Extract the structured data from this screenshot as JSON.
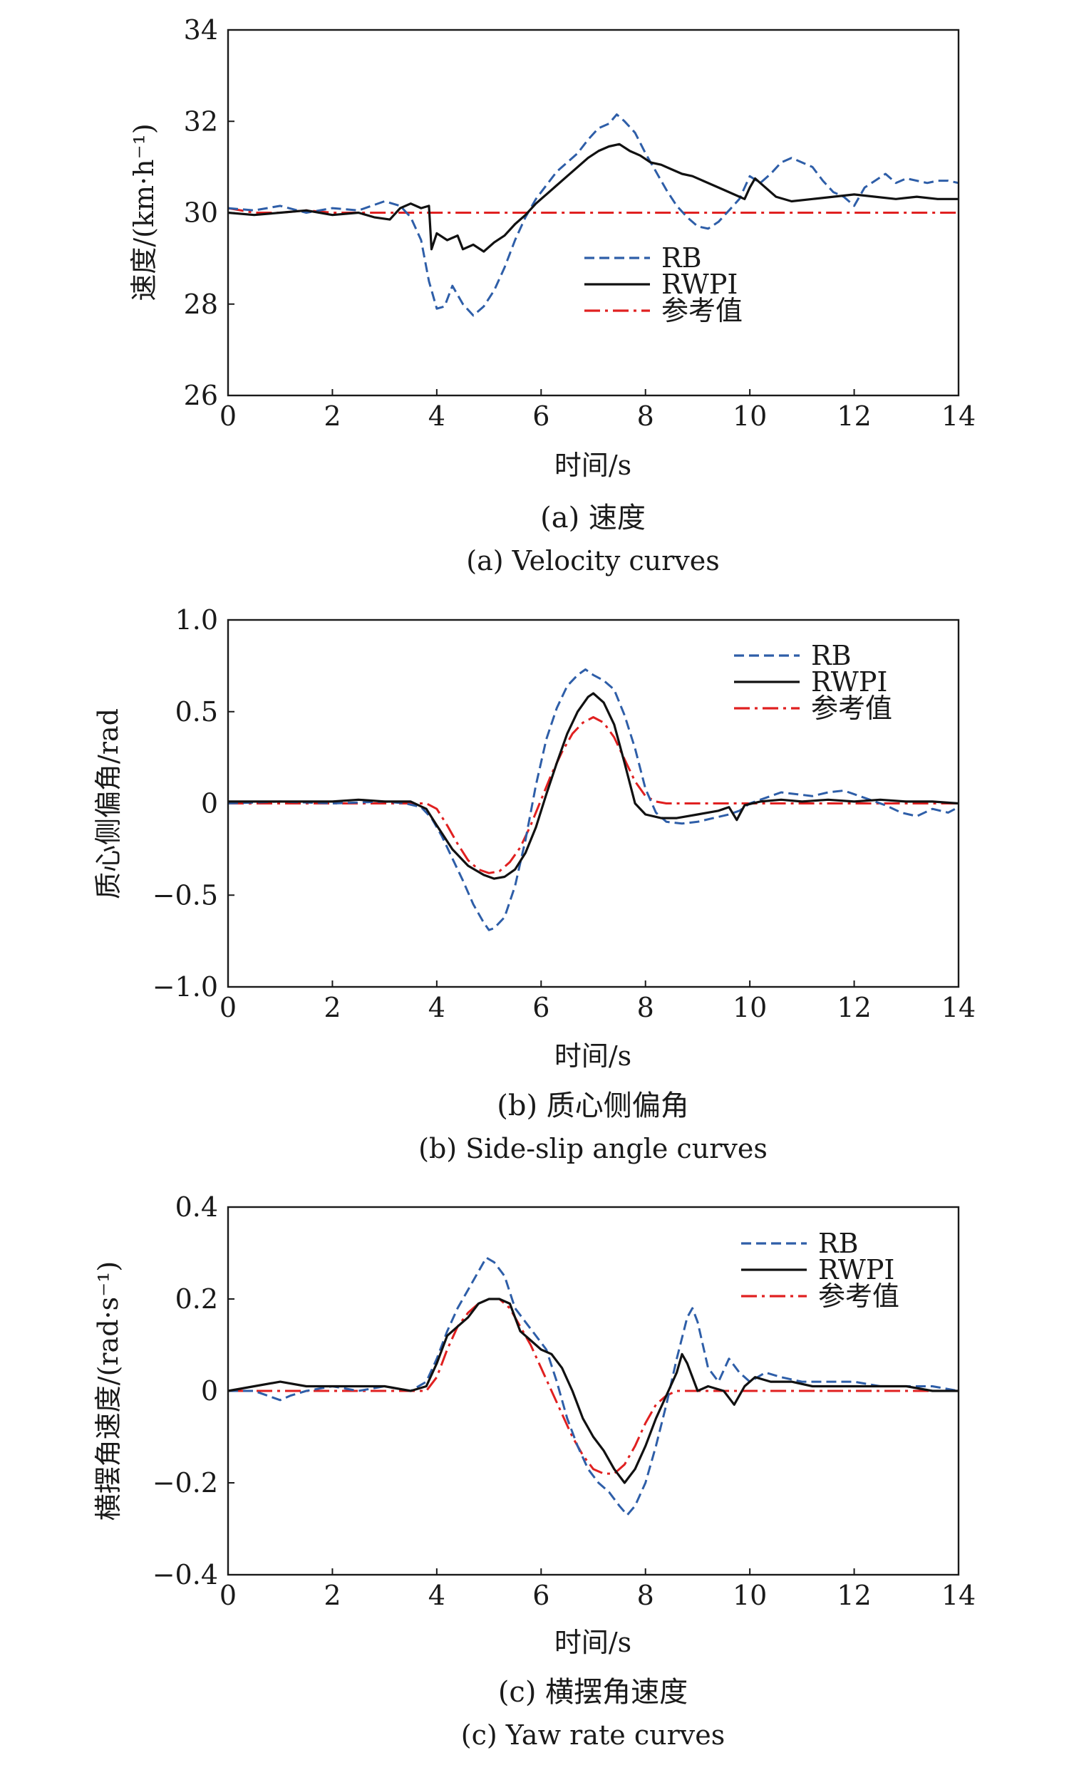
{
  "chart_data": [
    {
      "type": "line",
      "ylabel": "速度/(km·h⁻¹)",
      "xlabel": "时间/s",
      "caption_cn": "(a) 速度",
      "caption_en": "(a) Velocity curves",
      "xlim": [
        0,
        14
      ],
      "ylim": [
        26,
        34
      ],
      "xticks": [
        0,
        2,
        4,
        6,
        8,
        10,
        12,
        14
      ],
      "yticks": [
        26,
        28,
        30,
        32,
        34
      ],
      "xtick_labels": [
        "0",
        "2",
        "4",
        "6",
        "8",
        "10",
        "12",
        "14"
      ],
      "ytick_labels": [
        "26",
        "28",
        "30",
        "32",
        "34"
      ],
      "legend_position": "center",
      "series": [
        {
          "name": "RB",
          "color": "#2e5ea8",
          "dash": "dashed",
          "x": [
            0,
            0.5,
            1,
            1.5,
            2,
            2.5,
            3,
            3.3,
            3.5,
            3.7,
            3.85,
            4,
            4.15,
            4.3,
            4.5,
            4.7,
            4.9,
            5.1,
            5.3,
            5.5,
            5.7,
            5.9,
            6.1,
            6.3,
            6.5,
            6.7,
            6.9,
            7.1,
            7.3,
            7.45,
            7.6,
            7.8,
            8,
            8.2,
            8.4,
            8.6,
            8.8,
            9,
            9.2,
            9.4,
            9.6,
            9.8,
            10,
            10.2,
            10.4,
            10.6,
            10.8,
            11,
            11.2,
            11.4,
            11.6,
            11.8,
            12,
            12.2,
            12.4,
            12.6,
            12.8,
            13,
            13.2,
            13.4,
            13.6,
            13.8,
            14
          ],
          "y": [
            30.1,
            30.05,
            30.15,
            30.0,
            30.1,
            30.05,
            30.25,
            30.15,
            29.9,
            29.4,
            28.5,
            27.9,
            27.95,
            28.4,
            28.0,
            27.75,
            27.95,
            28.3,
            28.8,
            29.4,
            29.9,
            30.3,
            30.6,
            30.9,
            31.1,
            31.3,
            31.6,
            31.85,
            31.95,
            32.15,
            32.0,
            31.75,
            31.3,
            30.9,
            30.5,
            30.15,
            29.9,
            29.7,
            29.65,
            29.8,
            30.05,
            30.3,
            30.8,
            30.65,
            30.85,
            31.1,
            31.2,
            31.1,
            31.0,
            30.7,
            30.45,
            30.35,
            30.15,
            30.55,
            30.7,
            30.85,
            30.65,
            30.75,
            30.7,
            30.65,
            30.7,
            30.7,
            30.65
          ]
        },
        {
          "name": "RWPI",
          "color": "#111111",
          "dash": "solid",
          "x": [
            0,
            0.5,
            1,
            1.5,
            2,
            2.5,
            2.8,
            3.1,
            3.3,
            3.5,
            3.7,
            3.85,
            3.9,
            4.0,
            4.2,
            4.4,
            4.5,
            4.7,
            4.9,
            5.1,
            5.3,
            5.5,
            5.7,
            5.9,
            6.1,
            6.3,
            6.5,
            6.7,
            6.9,
            7.1,
            7.3,
            7.5,
            7.7,
            7.9,
            8.1,
            8.3,
            8.5,
            8.7,
            8.9,
            9.1,
            9.3,
            9.5,
            9.7,
            9.9,
            10.0,
            10.1,
            10.3,
            10.5,
            10.8,
            11.2,
            11.6,
            12,
            12.4,
            12.8,
            13.2,
            13.6,
            14
          ],
          "y": [
            30.0,
            29.95,
            30.0,
            30.05,
            29.95,
            30.0,
            29.9,
            29.85,
            30.1,
            30.2,
            30.1,
            30.15,
            29.2,
            29.55,
            29.4,
            29.5,
            29.2,
            29.3,
            29.15,
            29.35,
            29.5,
            29.75,
            29.95,
            30.2,
            30.4,
            30.6,
            30.8,
            31.0,
            31.2,
            31.35,
            31.45,
            31.5,
            31.35,
            31.25,
            31.1,
            31.05,
            30.95,
            30.85,
            30.8,
            30.7,
            30.6,
            30.5,
            30.4,
            30.3,
            30.55,
            30.75,
            30.55,
            30.35,
            30.25,
            30.3,
            30.35,
            30.4,
            30.35,
            30.3,
            30.35,
            30.3,
            30.3
          ]
        },
        {
          "name": "参考值",
          "color": "#e02020",
          "dash": "dashdot",
          "x": [
            0,
            0.5,
            1,
            1.5,
            2,
            2.5,
            3,
            3.4,
            14
          ],
          "y": [
            30.1,
            30.0,
            30.0,
            30.05,
            30.0,
            30.0,
            30.0,
            30.0,
            30.0
          ]
        }
      ]
    },
    {
      "type": "line",
      "ylabel": "质心侧偏角/rad",
      "xlabel": "时间/s",
      "caption_cn": "(b) 质心侧偏角",
      "caption_en": "(b) Side-slip angle curves",
      "xlim": [
        0,
        14
      ],
      "ylim": [
        -1.0,
        1.0
      ],
      "xticks": [
        0,
        2,
        4,
        6,
        8,
        10,
        12,
        14
      ],
      "yticks": [
        -1.0,
        -0.5,
        0,
        0.5,
        1.0
      ],
      "xtick_labels": [
        "0",
        "2",
        "4",
        "6",
        "8",
        "10",
        "12",
        "14"
      ],
      "ytick_labels": [
        "−1.0",
        "−0.5",
        "0",
        "0.5",
        "1.0"
      ],
      "legend_position": "top-right",
      "series": [
        {
          "name": "RB",
          "color": "#2e5ea8",
          "dash": "dashed",
          "x": [
            0,
            1,
            2,
            3,
            3.4,
            3.7,
            3.9,
            4.1,
            4.3,
            4.5,
            4.7,
            4.9,
            5.0,
            5.1,
            5.3,
            5.5,
            5.7,
            5.9,
            6.1,
            6.3,
            6.5,
            6.7,
            6.85,
            7.0,
            7.2,
            7.4,
            7.6,
            7.8,
            8.0,
            8.2,
            8.4,
            8.7,
            9.0,
            9.3,
            9.6,
            9.8,
            10.0,
            10.3,
            10.6,
            10.9,
            11.2,
            11.5,
            11.8,
            12.0,
            12.3,
            12.6,
            12.9,
            13.2,
            13.5,
            13.8,
            14
          ],
          "y": [
            0.0,
            0.01,
            0.0,
            0.01,
            0.0,
            -0.02,
            -0.08,
            -0.18,
            -0.3,
            -0.42,
            -0.55,
            -0.65,
            -0.69,
            -0.68,
            -0.62,
            -0.45,
            -0.2,
            0.1,
            0.35,
            0.52,
            0.64,
            0.7,
            0.73,
            0.7,
            0.67,
            0.62,
            0.48,
            0.3,
            0.08,
            -0.05,
            -0.1,
            -0.11,
            -0.1,
            -0.08,
            -0.06,
            -0.04,
            0.0,
            0.03,
            0.06,
            0.05,
            0.04,
            0.06,
            0.07,
            0.05,
            0.02,
            -0.01,
            -0.05,
            -0.07,
            -0.03,
            -0.05,
            -0.02
          ]
        },
        {
          "name": "RWPI",
          "color": "#111111",
          "dash": "solid",
          "x": [
            0,
            1,
            2,
            2.5,
            3,
            3.5,
            3.8,
            4.0,
            4.3,
            4.6,
            4.9,
            5.1,
            5.3,
            5.5,
            5.7,
            5.9,
            6.1,
            6.3,
            6.5,
            6.7,
            6.9,
            7.0,
            7.2,
            7.4,
            7.6,
            7.8,
            8.0,
            8.3,
            8.6,
            9.0,
            9.4,
            9.6,
            9.75,
            9.9,
            10.2,
            10.6,
            11,
            11.5,
            12,
            12.5,
            13,
            13.5,
            14
          ],
          "y": [
            0.01,
            0.01,
            0.01,
            0.02,
            0.01,
            0.01,
            -0.03,
            -0.12,
            -0.25,
            -0.34,
            -0.39,
            -0.41,
            -0.4,
            -0.36,
            -0.27,
            -0.13,
            0.05,
            0.22,
            0.38,
            0.5,
            0.58,
            0.6,
            0.55,
            0.43,
            0.22,
            0.0,
            -0.06,
            -0.08,
            -0.08,
            -0.06,
            -0.04,
            -0.02,
            -0.09,
            -0.01,
            0.01,
            0.02,
            0.01,
            0.02,
            0.01,
            0.02,
            0.01,
            0.01,
            0.0
          ]
        },
        {
          "name": "参考值",
          "color": "#e02020",
          "dash": "dashdot",
          "x": [
            0,
            3.8,
            4.0,
            4.2,
            4.4,
            4.6,
            4.8,
            5.0,
            5.2,
            5.4,
            5.6,
            5.8,
            6.0,
            6.2,
            6.4,
            6.6,
            6.8,
            7.0,
            7.2,
            7.4,
            7.6,
            7.8,
            8.0,
            8.2,
            8.4,
            14
          ],
          "y": [
            0.0,
            0.0,
            -0.03,
            -0.12,
            -0.22,
            -0.31,
            -0.36,
            -0.38,
            -0.37,
            -0.32,
            -0.24,
            -0.12,
            0.02,
            0.16,
            0.28,
            0.38,
            0.44,
            0.47,
            0.44,
            0.36,
            0.24,
            0.12,
            0.04,
            0.01,
            0.0,
            0.0
          ]
        }
      ]
    },
    {
      "type": "line",
      "ylabel": "横摆角速度/(rad·s⁻¹)",
      "xlabel": "时间/s",
      "caption_cn": "(c) 横摆角速度",
      "caption_en": "(c) Yaw rate curves",
      "xlim": [
        0,
        14
      ],
      "ylim": [
        -0.4,
        0.4
      ],
      "xticks": [
        0,
        2,
        4,
        6,
        8,
        10,
        12,
        14
      ],
      "yticks": [
        -0.4,
        -0.2,
        0,
        0.2,
        0.4
      ],
      "xtick_labels": [
        "0",
        "2",
        "4",
        "6",
        "8",
        "10",
        "12",
        "14"
      ],
      "ytick_labels": [
        "−0.4",
        "−0.2",
        "0",
        "0.2",
        "0.4"
      ],
      "legend_position": "top-right",
      "series": [
        {
          "name": "RB",
          "color": "#2e5ea8",
          "dash": "dashed",
          "x": [
            0,
            0.5,
            1.0,
            1.2,
            1.5,
            2,
            2.5,
            3,
            3.5,
            3.8,
            4.0,
            4.2,
            4.4,
            4.6,
            4.8,
            4.95,
            5.1,
            5.3,
            5.5,
            5.7,
            5.9,
            6.1,
            6.3,
            6.5,
            6.7,
            6.9,
            7.1,
            7.3,
            7.5,
            7.65,
            7.8,
            8.0,
            8.2,
            8.4,
            8.6,
            8.8,
            8.9,
            9.0,
            9.2,
            9.4,
            9.6,
            9.8,
            10.0,
            10.3,
            10.6,
            11,
            11.5,
            12,
            12.5,
            13,
            13.5,
            14
          ],
          "y": [
            0.0,
            0.0,
            -0.02,
            -0.01,
            0.0,
            0.01,
            0.0,
            0.01,
            0.0,
            0.02,
            0.07,
            0.13,
            0.18,
            0.22,
            0.26,
            0.29,
            0.28,
            0.25,
            0.18,
            0.15,
            0.12,
            0.09,
            0.02,
            -0.06,
            -0.12,
            -0.17,
            -0.2,
            -0.22,
            -0.25,
            -0.27,
            -0.25,
            -0.2,
            -0.12,
            -0.03,
            0.07,
            0.16,
            0.18,
            0.15,
            0.05,
            0.02,
            0.07,
            0.04,
            0.02,
            0.04,
            0.03,
            0.02,
            0.02,
            0.02,
            0.01,
            0.01,
            0.01,
            0.0
          ]
        },
        {
          "name": "RWPI",
          "color": "#111111",
          "dash": "solid",
          "x": [
            0,
            0.5,
            1.0,
            1.5,
            2,
            2.5,
            3,
            3.5,
            3.8,
            4.0,
            4.2,
            4.4,
            4.6,
            4.8,
            5.0,
            5.2,
            5.4,
            5.6,
            5.8,
            6.0,
            6.2,
            6.4,
            6.6,
            6.8,
            7.0,
            7.2,
            7.4,
            7.6,
            7.8,
            8.0,
            8.2,
            8.4,
            8.6,
            8.7,
            8.8,
            9.0,
            9.2,
            9.5,
            9.7,
            9.9,
            10.1,
            10.4,
            10.8,
            11.2,
            11.6,
            12,
            12.5,
            13,
            13.5,
            14
          ],
          "y": [
            0.0,
            0.01,
            0.02,
            0.01,
            0.01,
            0.01,
            0.01,
            0.0,
            0.01,
            0.06,
            0.12,
            0.14,
            0.16,
            0.19,
            0.2,
            0.2,
            0.19,
            0.13,
            0.11,
            0.09,
            0.08,
            0.05,
            0.0,
            -0.06,
            -0.1,
            -0.13,
            -0.17,
            -0.2,
            -0.17,
            -0.12,
            -0.06,
            -0.01,
            0.04,
            0.08,
            0.06,
            0.0,
            0.01,
            0.0,
            -0.03,
            0.01,
            0.03,
            0.02,
            0.02,
            0.01,
            0.01,
            0.01,
            0.01,
            0.01,
            0.0,
            0.0
          ]
        },
        {
          "name": "参考值",
          "color": "#e02020",
          "dash": "dashdot",
          "x": [
            0,
            3.8,
            4.0,
            4.2,
            4.4,
            4.6,
            4.8,
            5.0,
            5.2,
            5.4,
            5.6,
            5.8,
            6.0,
            6.2,
            6.4,
            6.6,
            6.8,
            7.0,
            7.2,
            7.4,
            7.6,
            7.8,
            8.0,
            8.2,
            8.4,
            8.6,
            14
          ],
          "y": [
            0.0,
            0.0,
            0.03,
            0.09,
            0.14,
            0.17,
            0.19,
            0.2,
            0.2,
            0.18,
            0.14,
            0.1,
            0.05,
            0.0,
            -0.05,
            -0.1,
            -0.14,
            -0.17,
            -0.18,
            -0.18,
            -0.16,
            -0.12,
            -0.07,
            -0.03,
            -0.01,
            0.0,
            0.0
          ]
        }
      ]
    }
  ]
}
